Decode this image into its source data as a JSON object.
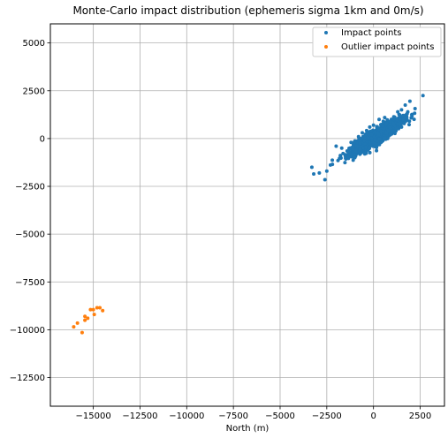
{
  "chart_data": {
    "type": "scatter",
    "title": "Monte-Carlo impact distribution (ephemeris sigma 1km and 0m/s)",
    "xlabel": "North (m)",
    "ylabel": "",
    "xlim": [
      -17300,
      3800
    ],
    "ylim": [
      -14000,
      6000
    ],
    "xticks": [
      -15000,
      -12500,
      -10000,
      -7500,
      -5000,
      -2500,
      0,
      2500
    ],
    "xtick_labels": [
      "−15000",
      "−12500",
      "−10000",
      "−7500",
      "−5000",
      "−2500",
      "0",
      "2500"
    ],
    "yticks": [
      5000,
      2500,
      0,
      -2500,
      -5000,
      -7500,
      -10000,
      -12500
    ],
    "ytick_labels": [
      "5000",
      "2500",
      "0",
      "−2500",
      "−5000",
      "−7500",
      "−10000",
      "−12500"
    ],
    "grid": true,
    "legend_position": "top-right",
    "series": [
      {
        "name": "Impact points",
        "color": "#1f77b4",
        "points": [
          [
            2650,
            2250
          ],
          [
            1950,
            1950
          ],
          [
            1700,
            1750
          ],
          [
            1500,
            1500
          ],
          [
            1800,
            1300
          ],
          [
            1400,
            1200
          ],
          [
            1100,
            1050
          ],
          [
            900,
            900
          ],
          [
            700,
            800
          ],
          [
            500,
            650
          ],
          [
            300,
            500
          ],
          [
            100,
            350
          ],
          [
            -100,
            200
          ],
          [
            -300,
            50
          ],
          [
            -500,
            -100
          ],
          [
            -700,
            -250
          ],
          [
            -900,
            -400
          ],
          [
            -1100,
            -550
          ],
          [
            -1300,
            -700
          ],
          [
            -1500,
            -850
          ],
          [
            -1900,
            -1150
          ],
          [
            -2200,
            -1350
          ],
          [
            -2500,
            -1700
          ],
          [
            -2600,
            -2150
          ],
          [
            -3300,
            -1500
          ],
          [
            -3200,
            -1850
          ],
          [
            -2900,
            -1800
          ],
          [
            -2000,
            -400
          ],
          [
            -1700,
            -500
          ],
          [
            1200,
            400
          ],
          [
            1500,
            600
          ],
          [
            600,
            1100
          ],
          [
            300,
            1000
          ],
          [
            0,
            700
          ],
          [
            -200,
            600
          ],
          [
            -600,
            300
          ],
          [
            -800,
            100
          ],
          [
            900,
            200
          ],
          [
            400,
            -200
          ],
          [
            100,
            -400
          ],
          [
            -400,
            -700
          ],
          [
            -1000,
            -1000
          ],
          [
            1600,
            1000
          ],
          [
            1300,
            1400
          ],
          [
            -1200,
            -200
          ]
        ]
      },
      {
        "name": "Outlier impact points",
        "color": "#ff7f0e",
        "points": [
          [
            -16050,
            -9850
          ],
          [
            -15850,
            -9650
          ],
          [
            -15600,
            -10150
          ],
          [
            -15450,
            -9500
          ],
          [
            -15450,
            -9300
          ],
          [
            -15300,
            -9400
          ],
          [
            -15150,
            -8950
          ],
          [
            -15000,
            -8950
          ],
          [
            -14950,
            -9200
          ],
          [
            -14800,
            -8850
          ],
          [
            -14650,
            -8850
          ],
          [
            -14500,
            -9000
          ]
        ]
      }
    ]
  }
}
